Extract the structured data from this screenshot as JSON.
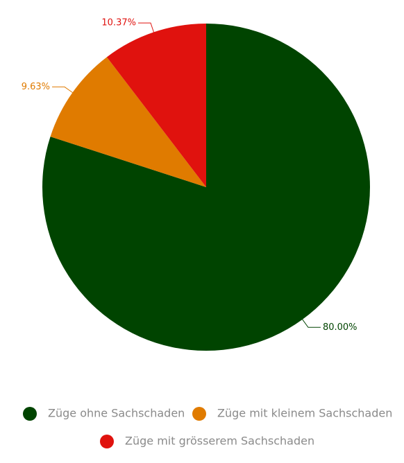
{
  "chart_data": {
    "type": "pie",
    "categories": [
      "Züge ohne Sachschaden",
      "Züge mit kleinem Sachschaden",
      "Züge mit grösserem Sachschaden"
    ],
    "values": [
      80,
      9.63,
      10.37
    ],
    "value_labels": [
      "80.00%",
      "9.63%",
      "10.37%"
    ],
    "colors": [
      "#004400",
      "#e07b00",
      "#e0120e"
    ]
  }
}
